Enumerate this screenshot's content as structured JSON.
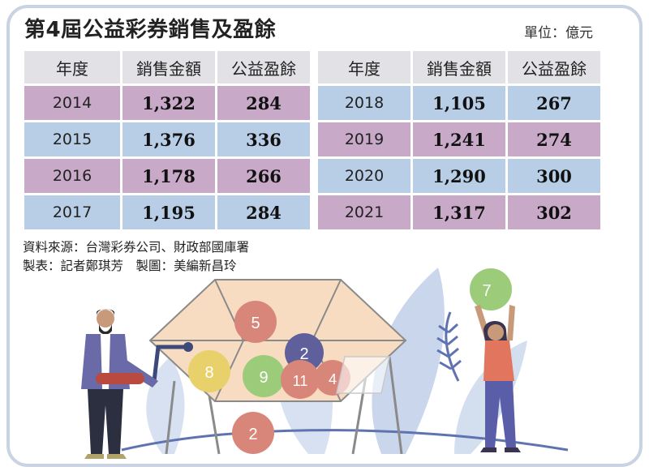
{
  "title": "第4屆公益彩券銷售及盈餘",
  "unit": "單位：億元",
  "headers": {
    "year": "年度",
    "sales": "銷售金額",
    "surplus": "公益盈餘"
  },
  "left_rows": [
    {
      "year": "2014",
      "sales": "1,322",
      "surplus": "284",
      "color": "#c8a9c8"
    },
    {
      "year": "2015",
      "sales": "1,376",
      "surplus": "336",
      "color": "#b8cee6"
    },
    {
      "year": "2016",
      "sales": "1,178",
      "surplus": "266",
      "color": "#c8a9c8"
    },
    {
      "year": "2017",
      "sales": "1,195",
      "surplus": "284",
      "color": "#b8cee6"
    }
  ],
  "right_rows": [
    {
      "year": "2018",
      "sales": "1,105",
      "surplus": "267",
      "color": "#b8cee6"
    },
    {
      "year": "2019",
      "sales": "1,241",
      "surplus": "274",
      "color": "#c8a9c8"
    },
    {
      "year": "2020",
      "sales": "1,290",
      "surplus": "300",
      "color": "#b8cee6"
    },
    {
      "year": "2021",
      "sales": "1,317",
      "surplus": "302",
      "color": "#c8a9c8"
    }
  ],
  "source": "資料來源：台灣彩券公司、財政部國庫署",
  "credit": "製表：記者鄭琪芳　製圖：美編新昌玲",
  "illustration": {
    "balls": [
      "5",
      "2",
      "8",
      "9",
      "11",
      "4",
      "2",
      "7"
    ],
    "colors": {
      "purple": "#c8a9c8",
      "blue": "#b8cee6",
      "ball_red": "#d9867a",
      "ball_green": "#9ccc7a",
      "ball_yellow": "#e8d16a",
      "ball_navy": "#5f5f9c"
    }
  }
}
